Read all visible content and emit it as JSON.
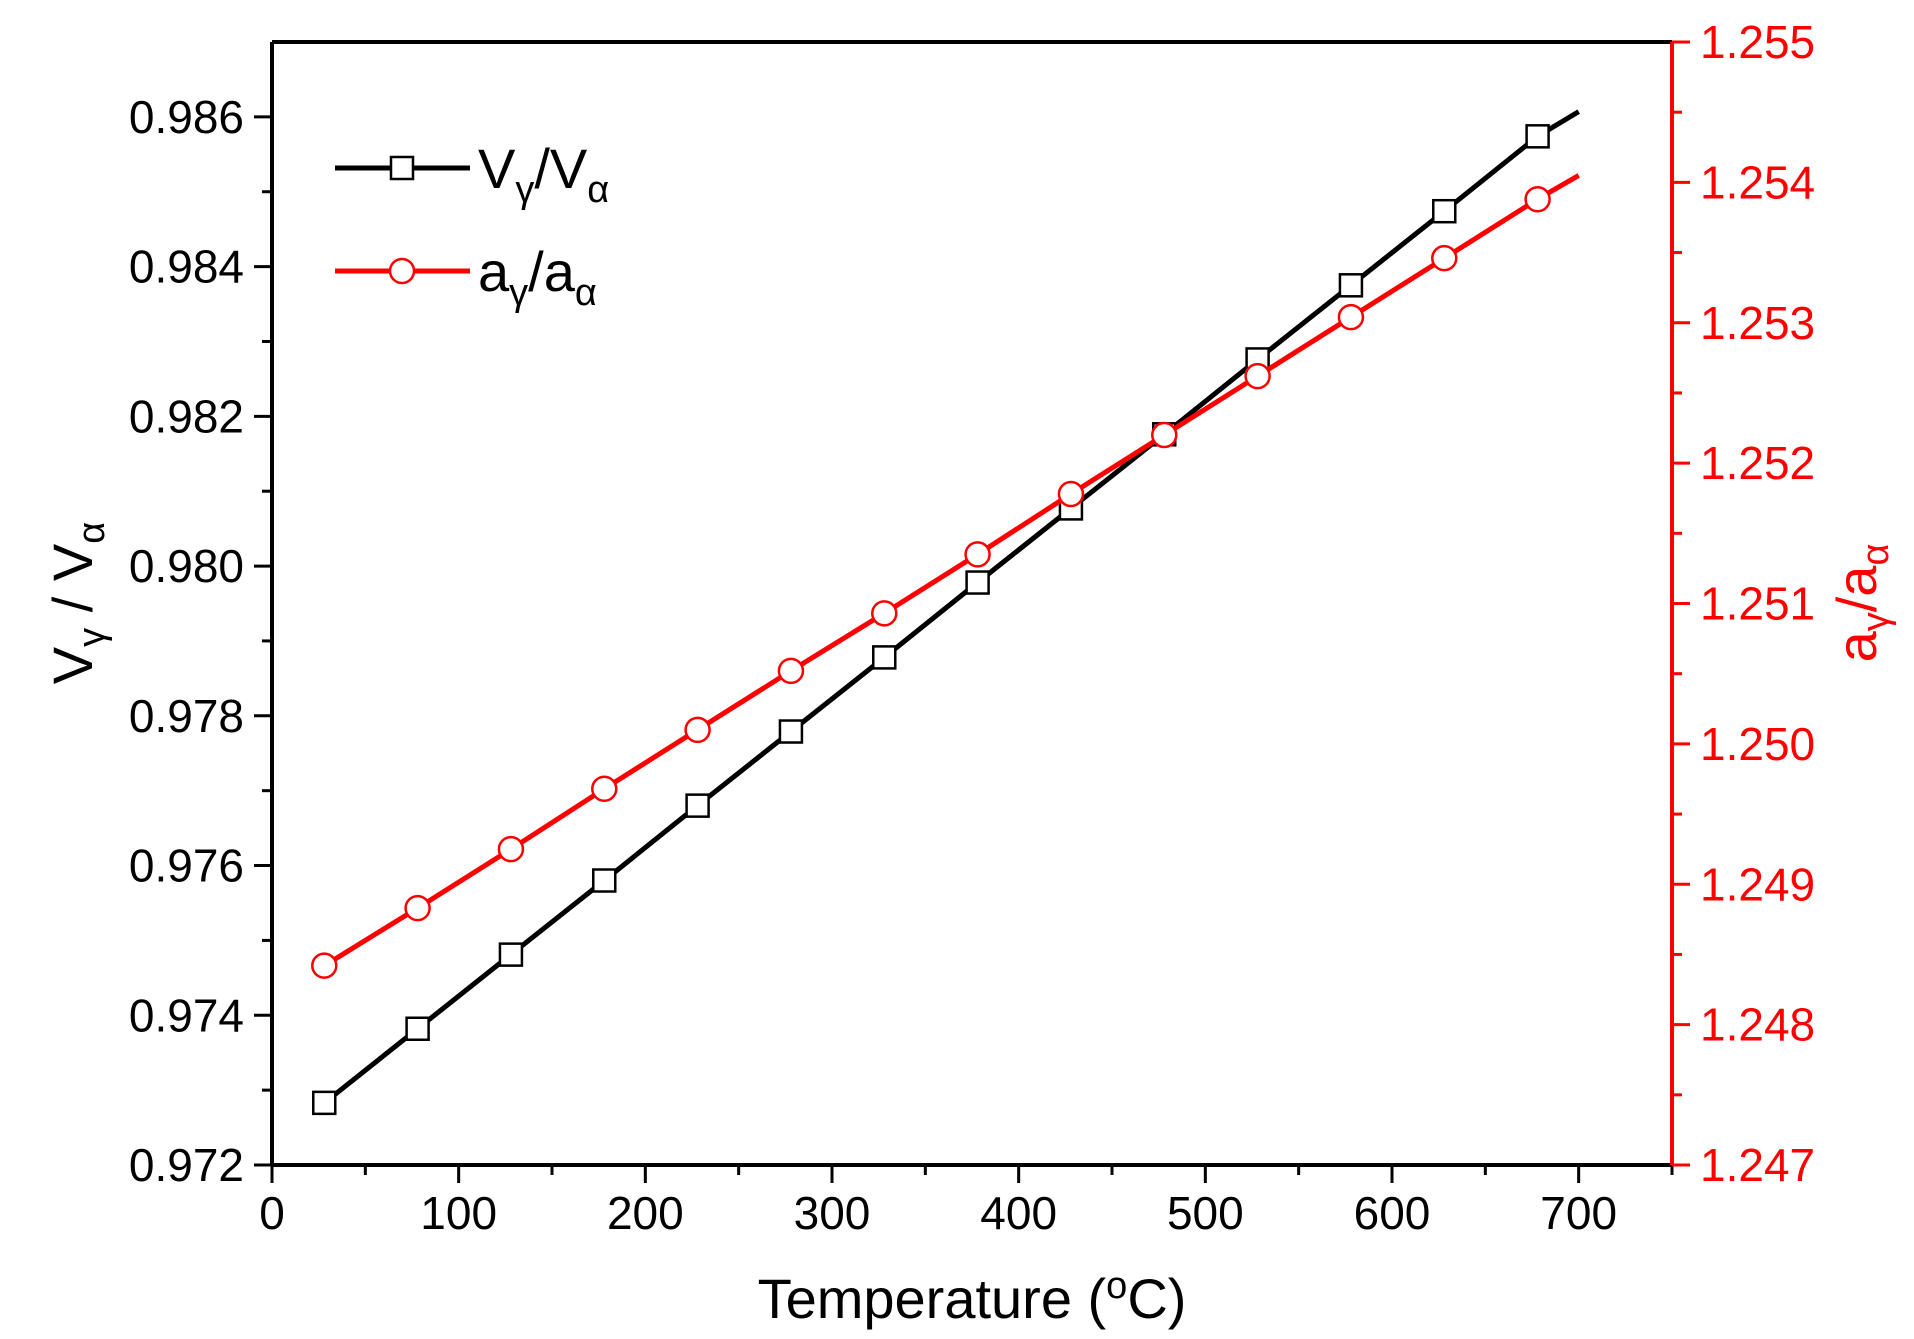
{
  "chart_data": {
    "type": "line",
    "x": [
      28,
      78,
      128,
      178,
      228,
      278,
      328,
      378,
      428,
      478,
      528,
      578,
      628,
      678
    ],
    "x_line_end": 700,
    "series": [
      {
        "name": "V_gamma/V_alpha",
        "axis": "left",
        "color": "#000000",
        "marker": "square",
        "values": [
          0.97283,
          0.97382,
          0.97481,
          0.9758,
          0.9768,
          0.97779,
          0.97878,
          0.97978,
          0.98077,
          0.98176,
          0.98276,
          0.98375,
          0.98474,
          0.98574
        ],
        "line_end_value": 0.98607
      },
      {
        "name": "a_gamma/a_alpha",
        "axis": "right",
        "color": "#ff0000",
        "marker": "circle",
        "values": [
          1.24842,
          1.24883,
          1.24925,
          1.24968,
          1.2501,
          1.25052,
          1.25093,
          1.25135,
          1.25178,
          1.2522,
          1.25262,
          1.25304,
          1.25346,
          1.25388
        ],
        "line_end_value": 1.25405
      }
    ],
    "xlim": [
      0,
      750
    ],
    "ylim_left": [
      0.972,
      0.987
    ],
    "ylim_right": [
      1.247,
      1.255
    ],
    "x_ticks": [
      0,
      100,
      200,
      300,
      400,
      500,
      600,
      700
    ],
    "x_tick_labels": [
      "0",
      "100",
      "200",
      "300",
      "400",
      "500",
      "600",
      "700"
    ],
    "y_left_ticks": [
      0.972,
      0.974,
      0.976,
      0.978,
      0.98,
      0.982,
      0.984,
      0.986
    ],
    "y_left_tick_labels": [
      "0.972",
      "0.974",
      "0.976",
      "0.978",
      "0.980",
      "0.982",
      "0.984",
      "0.986"
    ],
    "y_right_ticks": [
      1.247,
      1.248,
      1.249,
      1.25,
      1.251,
      1.252,
      1.253,
      1.254,
      1.255
    ],
    "y_right_tick_labels": [
      "1.247",
      "1.248",
      "1.249",
      "1.250",
      "1.251",
      "1.252",
      "1.253",
      "1.254",
      "1.255"
    ],
    "xlabel": {
      "main": "Temperature (",
      "sup": "o",
      "tail": "C)"
    },
    "ylabel_left": {
      "a": "V",
      "a_sub": "γ",
      "sep": " / ",
      "b": "V",
      "b_sub": "α"
    },
    "ylabel_right": {
      "a": "a",
      "a_sub": "γ",
      "sep": "/",
      "b": "a",
      "b_sub": "α"
    },
    "legend": [
      {
        "a": "V",
        "a_sub": "γ",
        "sep": "/",
        "b": "V",
        "b_sub": "α"
      },
      {
        "a": "a",
        "a_sub": "γ",
        "sep": "/",
        "b": "a",
        "b_sub": "α"
      }
    ],
    "legend_position": "top-left",
    "grid": false,
    "colors": {
      "left_axis": "#000000",
      "right_axis": "#ff0000"
    }
  }
}
